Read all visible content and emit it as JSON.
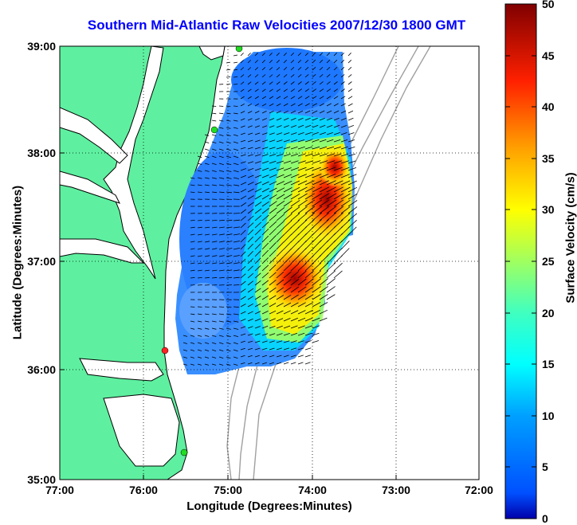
{
  "title": "Southern Mid-Atlantic Raw Velocities 2007/12/30 1800 GMT",
  "title_color": "#0000ff",
  "xlabel": "Longitude (Degrees:Minutes)",
  "ylabel": "Latitude (Degrees:Minutes)",
  "x_ticks": [
    "77:00",
    "76:00",
    "75:00",
    "74:00",
    "73:00",
    "72:00"
  ],
  "y_ticks": [
    "39:00",
    "38:00",
    "37:00",
    "36:00",
    "35:00"
  ],
  "colorbar": {
    "label": "Surface Velocity (cm/s)",
    "ticks": [
      "50",
      "45",
      "40",
      "35",
      "30",
      "25",
      "20",
      "15",
      "10",
      "5",
      "0"
    ],
    "range": [
      0,
      50
    ]
  },
  "colors": {
    "land": "#5ef0a0",
    "water": "#ffffff",
    "coastline": "#000000",
    "bathymetry": "#a0a0a0",
    "station_green": "#22dd22",
    "station_red": "#ff2222"
  },
  "map_bounds": {
    "lon": [
      -77,
      -72
    ],
    "lat": [
      35,
      39
    ]
  },
  "stations": [
    {
      "name": "north",
      "color": "green"
    },
    {
      "name": "mid",
      "color": "green"
    },
    {
      "name": "south-red",
      "color": "red"
    },
    {
      "name": "south",
      "color": "green"
    }
  ],
  "velocity_field": {
    "min_cm_s": 0,
    "max_cm_s": 50,
    "core_region": "southeast of mouth of Delaware/offshore Chesapeake, ~74:00W 37:00N",
    "flow_direction": "southwest to northeast along shelf"
  }
}
